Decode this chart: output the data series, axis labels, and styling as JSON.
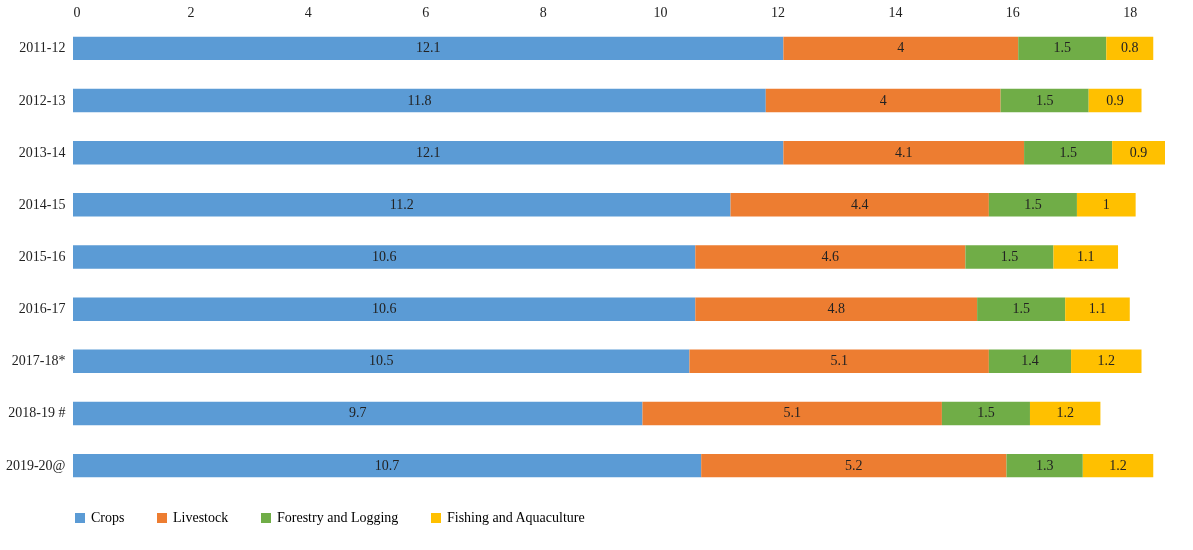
{
  "chart_data": {
    "type": "bar",
    "orientation": "horizontal",
    "stacked": true,
    "data_labels": true,
    "legend": "bottom",
    "grid": false,
    "categories": [
      "2011-12",
      "2012-13",
      "2013-14",
      "2014-15",
      "2015-16",
      "2016-17",
      "2017-18*",
      "2018-19 #",
      "2019-20@"
    ],
    "xlim": [
      0,
      18.6
    ],
    "xticks": [
      0,
      2,
      4,
      6,
      8,
      10,
      12,
      14,
      16,
      18
    ],
    "series": [
      {
        "name": "Crops",
        "color": "#5b9bd5",
        "values": [
          12.1,
          11.8,
          12.1,
          11.2,
          10.6,
          10.6,
          10.5,
          9.7,
          10.7
        ]
      },
      {
        "name": "Livestock",
        "color": "#ed7d31",
        "values": [
          4,
          4,
          4.1,
          4.4,
          4.6,
          4.8,
          5.1,
          5.1,
          5.2
        ]
      },
      {
        "name": "Forestry and Logging",
        "color": "#70ad47",
        "values": [
          1.5,
          1.5,
          1.5,
          1.5,
          1.5,
          1.5,
          1.4,
          1.5,
          1.3
        ]
      },
      {
        "name": "Fishing and Aquaculture",
        "color": "#ffc000",
        "values": [
          0.8,
          0.9,
          0.9,
          1,
          1.1,
          1.1,
          1.2,
          1.2,
          1.2
        ]
      }
    ]
  }
}
